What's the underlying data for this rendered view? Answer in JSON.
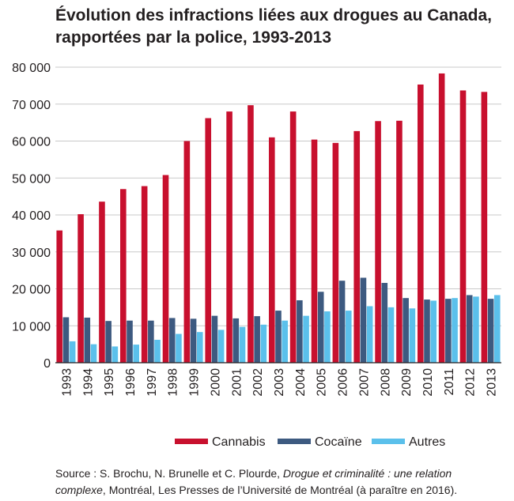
{
  "title_line1": "Évolution des infractions liées aux drogues au Canada,",
  "title_line2": "rapportées par la police, 1993-2013",
  "source": {
    "prefix": "Source : S. Brochu, N. Brunelle et C. Plourde, ",
    "book_title_part1": "Drogue et criminalité : une relation",
    "book_title_part2": "complexe",
    "suffix": ", Montréal, Les Presses de l’Université de Montréal (à paraître en 2016)."
  },
  "chart_data": {
    "type": "bar",
    "title": "Évolution des infractions liées aux drogues au Canada, rapportées par la police, 1993-2013",
    "xlabel": "",
    "ylabel": "",
    "ylim": [
      0,
      80000
    ],
    "yticks": [
      0,
      10000,
      20000,
      30000,
      40000,
      50000,
      60000,
      70000,
      80000
    ],
    "ytick_labels": [
      "0",
      "10 000",
      "20 000",
      "30 000",
      "40 000",
      "50 000",
      "60 000",
      "70 000",
      "80 000"
    ],
    "grid": "horizontal",
    "legend_position": "bottom",
    "categories": [
      "1993",
      "1994",
      "1995",
      "1996",
      "1997",
      "1998",
      "1999",
      "2000",
      "2001",
      "2002",
      "2003",
      "2004",
      "2005",
      "2006",
      "2007",
      "2008",
      "2009",
      "2010",
      "2011",
      "2012",
      "2013"
    ],
    "series": [
      {
        "name": "Cannabis",
        "color": "#c8102e",
        "values": [
          35800,
          40200,
          43600,
          47000,
          47800,
          50800,
          60000,
          66200,
          68000,
          69700,
          61000,
          68000,
          60400,
          59500,
          62700,
          65400,
          65500,
          75300,
          78300,
          73700,
          73300
        ]
      },
      {
        "name": "Cocaïne",
        "color": "#3d5a80",
        "values": [
          12300,
          12200,
          11300,
          11400,
          11400,
          12100,
          11900,
          12700,
          12000,
          12600,
          14100,
          16900,
          19200,
          22200,
          23000,
          21600,
          17500,
          17100,
          17300,
          18300,
          17300
        ]
      },
      {
        "name": "Autres",
        "color": "#5bc0eb",
        "values": [
          5800,
          5000,
          4400,
          4900,
          6200,
          7800,
          8300,
          8900,
          9700,
          10300,
          11400,
          12700,
          13900,
          14100,
          15300,
          15000,
          14700,
          16800,
          17500,
          17900,
          18300
        ]
      }
    ]
  }
}
